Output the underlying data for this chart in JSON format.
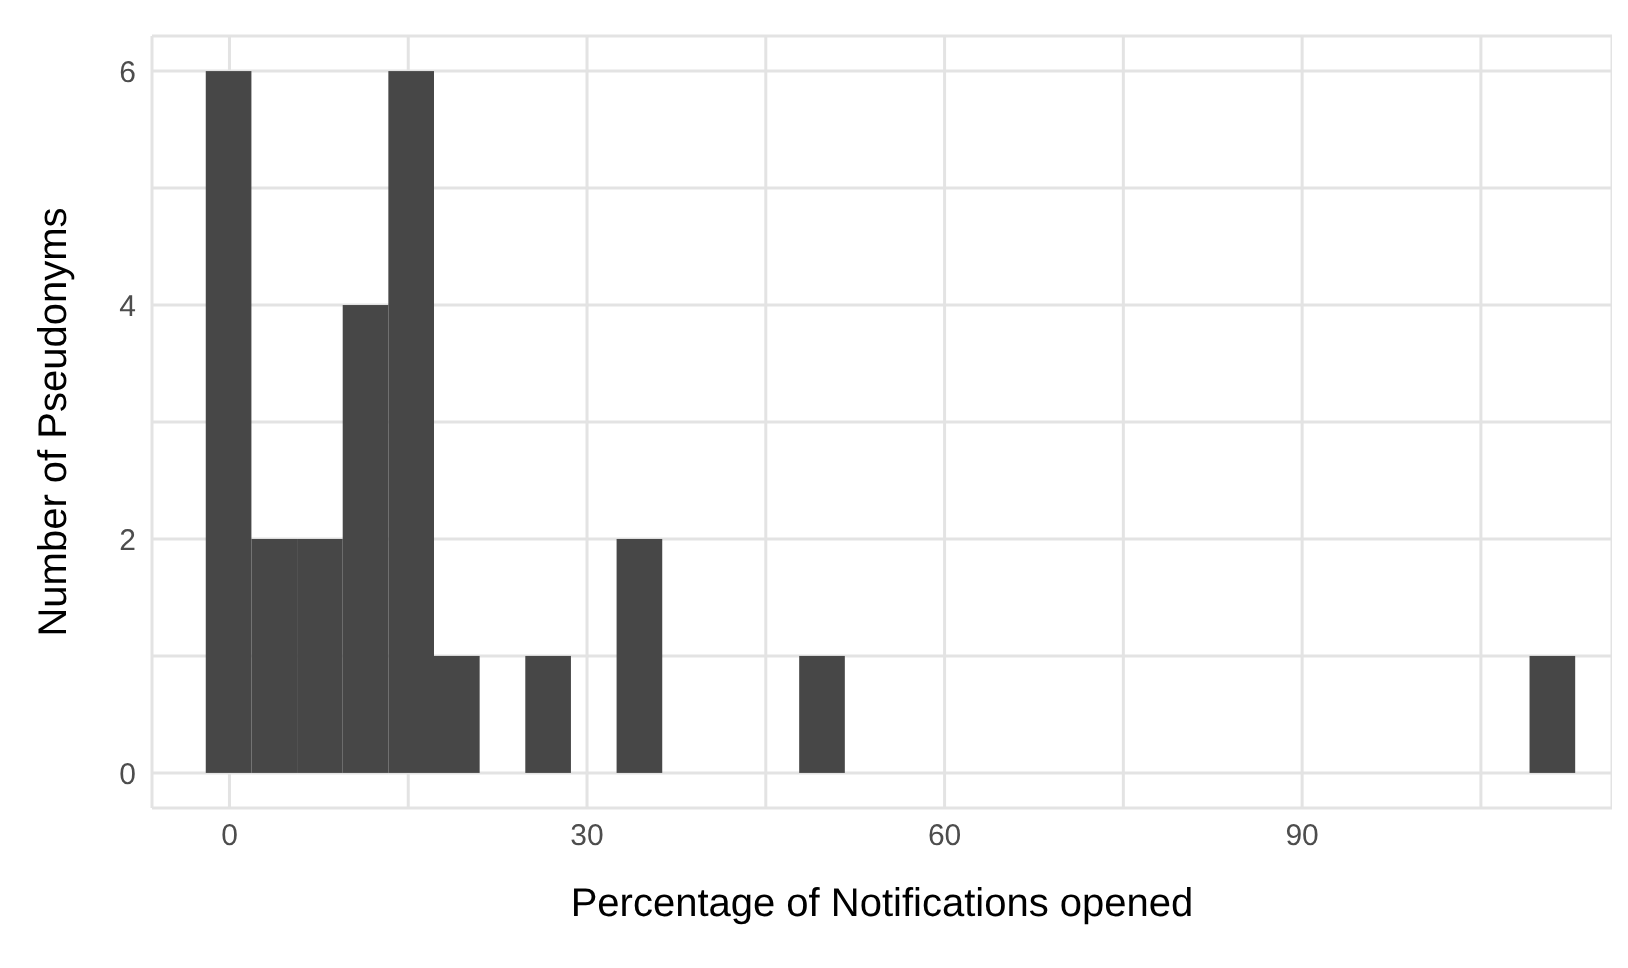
{
  "chart_data": {
    "type": "histogram",
    "xlabel": "Percentage of Notifications opened",
    "ylabel": "Number of Pseudonyms",
    "bins": [
      -1.92,
      1.91,
      5.74,
      9.57,
      13.4,
      17.23,
      21.06,
      24.89,
      28.72,
      32.55,
      36.38,
      40.21,
      44.04,
      47.87,
      51.7,
      55.53,
      59.36,
      63.19,
      67.02,
      70.85,
      74.68,
      78.51,
      82.34,
      86.17,
      90,
      93.83,
      97.66,
      101.49,
      105.32,
      109.15,
      112.98
    ],
    "values": [
      6,
      2,
      2,
      4,
      6,
      1,
      0,
      1,
      0,
      2,
      0,
      0,
      0,
      1,
      0,
      0,
      0,
      0,
      0,
      0,
      0,
      0,
      0,
      0,
      0,
      0,
      0,
      0,
      0,
      1
    ],
    "color": "#474747",
    "xlim": [
      -6.5,
      116
    ],
    "xticks": [
      0,
      {
        "value": 15,
        "label": null
      },
      30,
      {
        "value": 45,
        "label": null
      },
      60,
      {
        "value": 75,
        "label": null
      },
      90,
      {
        "value": 105,
        "label": null
      }
    ],
    "ylim": [
      -0.3,
      6.3
    ],
    "yticks": [
      0,
      {
        "value": 1,
        "label": null
      },
      2,
      {
        "value": 3,
        "label": null
      },
      4,
      {
        "value": 5,
        "label": null
      },
      6
    ],
    "grid": true
  }
}
